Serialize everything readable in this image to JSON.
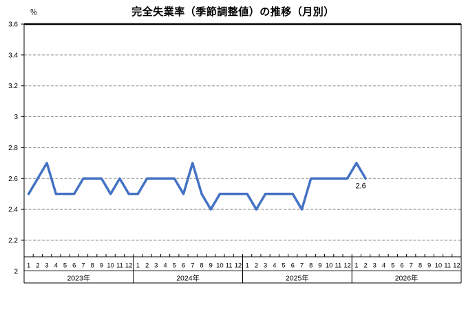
{
  "title": "完全失業率（季節調整値）の推移（月別）",
  "y_axis": {
    "unit_label": "％",
    "tick_labels": [
      "3.6",
      "3.4",
      "3.2",
      "3",
      "2.8",
      "2.6",
      "2.4",
      "2.2",
      "2"
    ],
    "min": 2.0,
    "max": 3.6,
    "step": 0.2
  },
  "x_axis": {
    "month_labels": [
      "1",
      "2",
      "3",
      "4",
      "5",
      "6",
      "7",
      "8",
      "9",
      "10",
      "11",
      "12"
    ],
    "year_labels": [
      "2023年",
      "2024年",
      "2025年",
      "2026年"
    ]
  },
  "chart_data": {
    "type": "line",
    "title": "完全失業率（季節調整値）の推移（月別）",
    "ylabel": "％",
    "ylim": [
      2.0,
      3.6
    ],
    "ytick_step": 0.2,
    "grid": "horizontal-dashed",
    "legend": "none",
    "series": [
      {
        "name": "完全失業率（季節調整値）",
        "color": "#4472C4",
        "years": [
          {
            "year": "2023年",
            "values": [
              2.5,
              2.6,
              2.7,
              2.5,
              2.5,
              2.5,
              2.6,
              2.6,
              2.6,
              2.5,
              2.6,
              2.5
            ]
          },
          {
            "year": "2024年",
            "values": [
              2.5,
              2.6,
              2.6,
              2.6,
              2.6,
              2.5,
              2.7,
              2.5,
              2.4,
              2.5,
              2.5,
              2.5
            ]
          },
          {
            "year": "2025年",
            "values": [
              2.5,
              2.4,
              2.5,
              2.5,
              2.5,
              2.5,
              2.4,
              2.6,
              2.6,
              2.6,
              2.6,
              2.6
            ]
          },
          {
            "year": "2026年",
            "values": [
              2.7,
              2.6
            ]
          }
        ]
      }
    ],
    "last_point_label": "2.6"
  },
  "colors": {
    "line": "#4472C4",
    "gridline": "#8C8C8C",
    "axis": "#000000",
    "background": "#FFFFFF"
  }
}
